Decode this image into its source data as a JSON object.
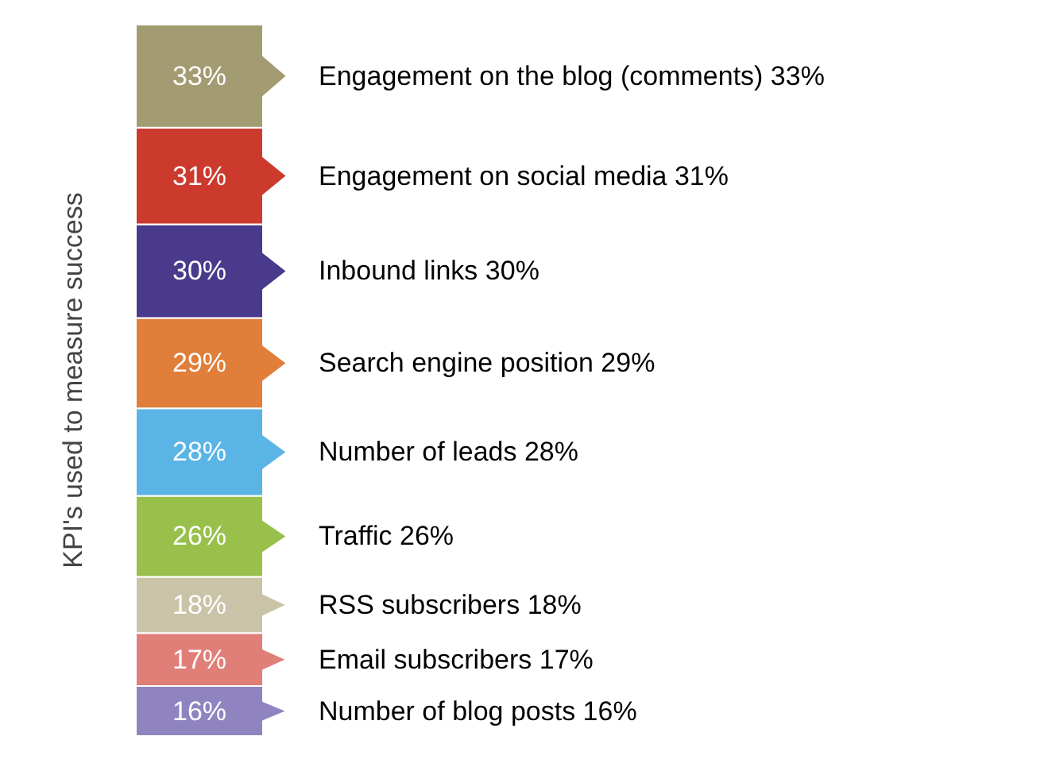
{
  "chart_data": {
    "type": "bar",
    "ylabel": "KPI's used to measure success",
    "categories": [
      null
    ],
    "stacked": true,
    "series": [
      {
        "name": "Number of blog posts",
        "color": "#8f84bf",
        "values": [
          16
        ],
        "value_labels": [
          "16%"
        ]
      },
      {
        "name": "Email subscribers",
        "color": "#e07f78",
        "values": [
          17
        ],
        "value_labels": [
          "17%"
        ]
      },
      {
        "name": "RSS subscribers",
        "color": "#c9c3a8",
        "values": [
          18
        ],
        "value_labels": [
          "18%"
        ]
      },
      {
        "name": "Traffic",
        "color": "#98c04a",
        "values": [
          26
        ],
        "value_labels": [
          "26%"
        ]
      },
      {
        "name": "Number of leads",
        "color": "#5ab4e6",
        "values": [
          28
        ],
        "value_labels": [
          "28%"
        ]
      },
      {
        "name": "Search engine position",
        "color": "#e07e3a",
        "values": [
          29
        ],
        "value_labels": [
          "29%"
        ]
      },
      {
        "name": "Inbound links",
        "color": "#4a3a8c",
        "values": [
          30
        ],
        "value_labels": [
          "30%"
        ]
      },
      {
        "name": "Engagement on social media",
        "color": "#cc3a2e",
        "values": [
          31
        ],
        "value_labels": [
          "31%"
        ]
      },
      {
        "name": "Engagement on the blog (comments)",
        "color": "#a39b72",
        "values": [
          33
        ],
        "value_labels": [
          "33%"
        ]
      }
    ]
  }
}
